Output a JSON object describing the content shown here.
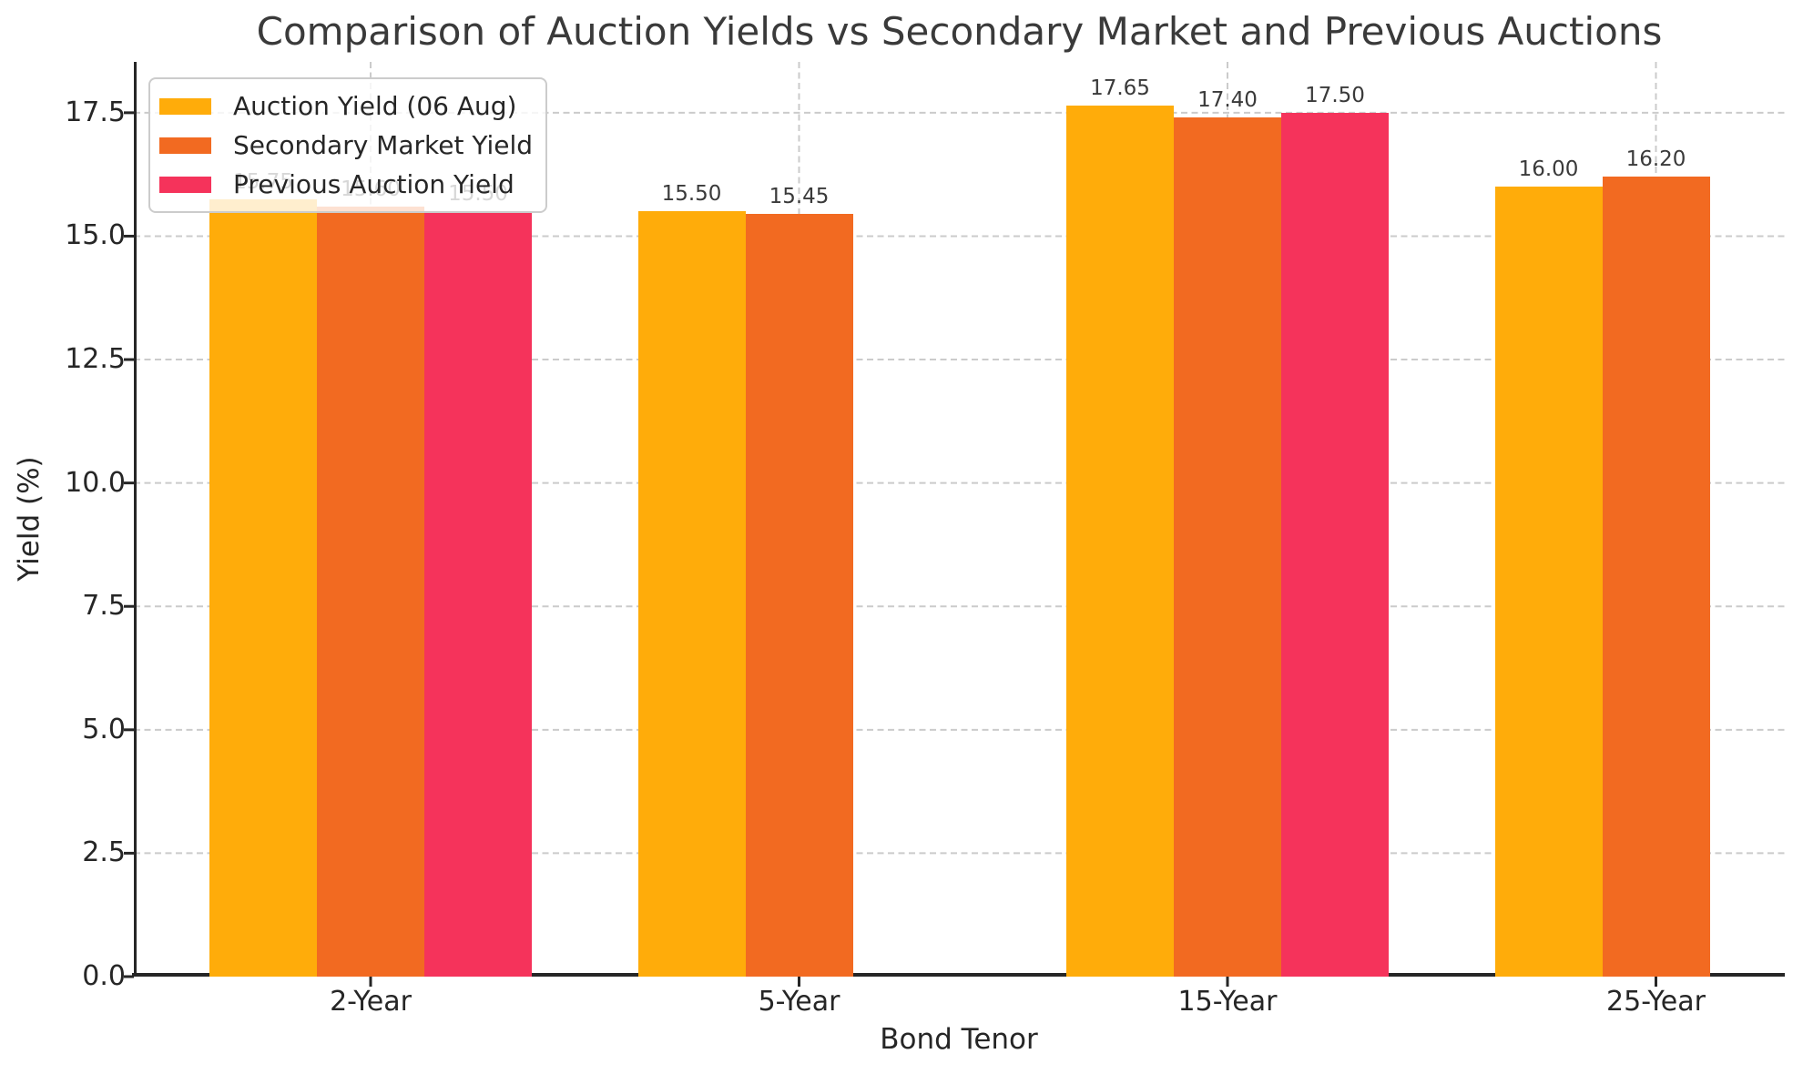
{
  "chart_data": {
    "type": "bar",
    "title": "Comparison of Auction Yields vs Secondary Market and Previous Auctions",
    "xlabel": "Bond Tenor",
    "ylabel": "Yield (%)",
    "categories": [
      "2-Year",
      "5-Year",
      "15-Year",
      "25-Year"
    ],
    "series": [
      {
        "name": "Auction Yield (06 Aug)",
        "color": "#FFAC0A",
        "values": [
          15.75,
          15.5,
          17.65,
          16.0
        ]
      },
      {
        "name": "Secondary Market Yield",
        "color": "#F26A21",
        "values": [
          15.6,
          15.45,
          17.4,
          16.2
        ]
      },
      {
        "name": "Previous Auction Yield",
        "color": "#F5335B",
        "values": [
          15.5,
          null,
          17.5,
          null
        ]
      }
    ],
    "bar_label_format": "2-decimals",
    "ylim": [
      0,
      18.53
    ],
    "yticks": [
      {
        "value": 0,
        "label": "0.0"
      },
      {
        "value": 2.5,
        "label": "2.5"
      },
      {
        "value": 5,
        "label": "5.0"
      },
      {
        "value": 7.5,
        "label": "7.5"
      },
      {
        "value": 10,
        "label": "10.0"
      },
      {
        "value": 12.5,
        "label": "12.5"
      },
      {
        "value": 15,
        "label": "15.0"
      },
      {
        "value": 17.5,
        "label": "17.5"
      }
    ],
    "grid": "dashed",
    "legend_position": "upper left"
  },
  "colors": {
    "grid": "#CBCBCB",
    "spine": "#262626",
    "tick": "#262626",
    "title_text": "#3A3A3A",
    "bar_label_text": "#3A3A3A"
  }
}
